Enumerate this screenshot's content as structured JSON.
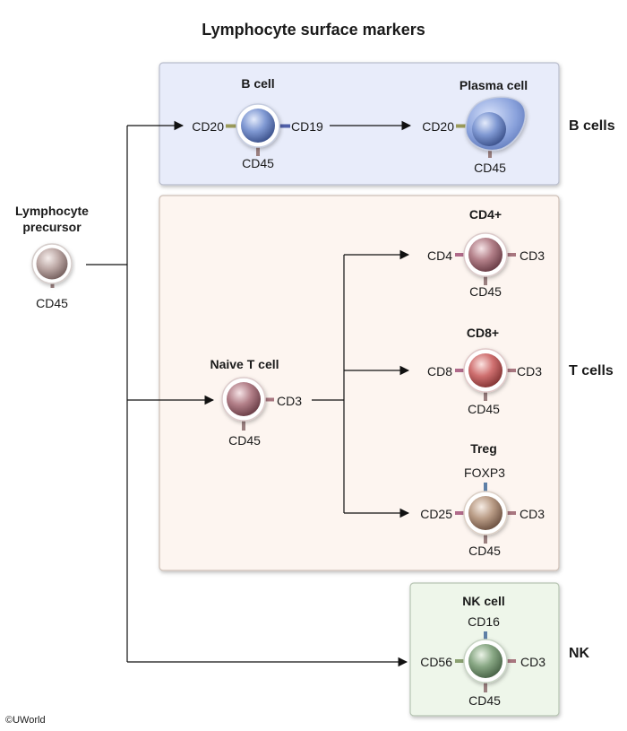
{
  "title": "Lymphocyte surface markers",
  "copyright": "©UWorld",
  "precursor": {
    "title_line1": "Lymphocyte",
    "title_line2": "precursor",
    "marker_bottom": "CD45"
  },
  "b_cells": {
    "group_label": "B cells",
    "b_cell": {
      "title": "B cell",
      "marker_left": "CD20",
      "marker_right": "CD19",
      "marker_bottom": "CD45"
    },
    "plasma_cell": {
      "title": "Plasma cell",
      "marker_left": "CD20",
      "marker_bottom": "CD45"
    }
  },
  "t_cells": {
    "group_label": "T cells",
    "naive": {
      "title": "Naive T cell",
      "marker_right": "CD3",
      "marker_bottom": "CD45"
    },
    "cd4": {
      "title": "CD4+",
      "marker_left": "CD4",
      "marker_right": "CD3",
      "marker_bottom": "CD45"
    },
    "cd8": {
      "title": "CD8+",
      "marker_left": "CD8",
      "marker_right": "CD3",
      "marker_bottom": "CD45"
    },
    "treg": {
      "title": "Treg",
      "marker_top": "FOXP3",
      "marker_left": "CD25",
      "marker_right": "CD3",
      "marker_bottom": "CD45"
    }
  },
  "nk": {
    "group_label": "NK",
    "nk_cell": {
      "title": "NK cell",
      "marker_top": "CD16",
      "marker_left": "CD56",
      "marker_right": "CD3",
      "marker_bottom": "CD45"
    }
  },
  "colors": {
    "b_panel": "#e8ecfa",
    "t_panel": "#fdf5f0",
    "nk_panel": "#eef6ea",
    "b_cell": "#7d95cf",
    "precursor_cell": "#bba6a4",
    "t_cell": "#b07d86",
    "cd8_cell": "#cd6e6e",
    "treg_cell": "#b79a85",
    "nk_cell": "#86a382"
  }
}
